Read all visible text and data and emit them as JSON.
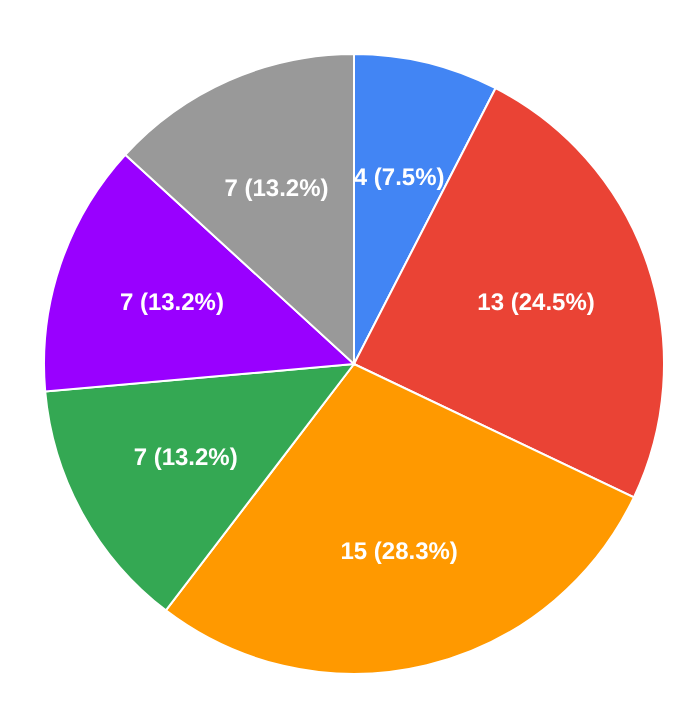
{
  "chart_data": {
    "type": "pie",
    "categories": [
      null,
      null,
      null,
      null,
      null,
      null
    ],
    "values": [
      4,
      13,
      15,
      7,
      7,
      7
    ],
    "colors": [
      "#4285f4",
      "#ea4335",
      "#ff9900",
      "#34a853",
      "#9900ff",
      "#999999"
    ],
    "value_labels": [
      "4 (7.5%)",
      "13 (24.5%)",
      "15 (28.3%)",
      "7 (13.2%)",
      "7 (13.2%)",
      "7 (13.2%)"
    ],
    "legend": false
  }
}
